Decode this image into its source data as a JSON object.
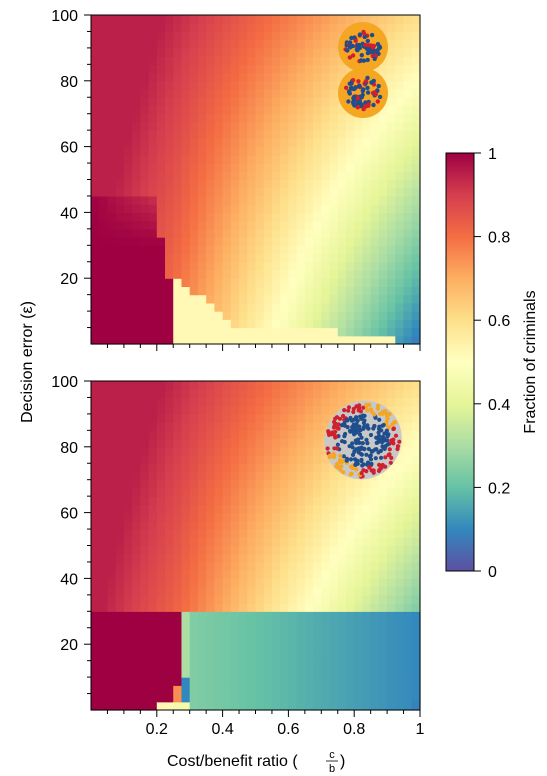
{
  "chart_data": [
    {
      "type": "heatmap",
      "panel": "top",
      "xlabel": "",
      "ylabel": "",
      "xlim": [
        0,
        1
      ],
      "ylim": [
        0,
        100
      ],
      "xticks": [
        0.2,
        0.4,
        0.6,
        0.8,
        1
      ],
      "x_tick_labels_shown": false,
      "yticks": [
        20,
        40,
        60,
        80,
        100
      ],
      "ytick_labels": [
        "20",
        "40",
        "60",
        "80",
        "100"
      ],
      "value": "fraction of criminals",
      "value_range": [
        0,
        1
      ],
      "cells": {
        "x_step": 0.025,
        "y_step": 2.5,
        "description_of_regions": [
          {
            "region": "low cost/benefit (x < ~0.22), error below ~45",
            "value": 1.0
          },
          {
            "region": "wedge above boundary x = 0.3 + 0.0055*(20 - e), e < 20",
            "value": 0.5
          },
          {
            "region": "upper-left gradient",
            "value_range": [
              0.5,
              0.95
            ]
          },
          {
            "region": "right side gradient toward x = 1, error 0",
            "value_range": [
              0.05,
              0.45
            ]
          }
        ]
      },
      "inset_icon": "two-circle-clusters-icon"
    },
    {
      "type": "heatmap",
      "panel": "bottom",
      "xlabel": "Cost/benefit ratio (c/b)",
      "ylabel": "",
      "xlim": [
        0,
        1
      ],
      "ylim": [
        0,
        100
      ],
      "xticks": [
        0.2,
        0.4,
        0.6,
        0.8,
        1
      ],
      "xtick_labels": [
        "0.2",
        "0.4",
        "0.6",
        "0.8",
        "1"
      ],
      "yticks": [
        20,
        40,
        60,
        80,
        100
      ],
      "ytick_labels": [
        "20",
        "40",
        "60",
        "80",
        "100"
      ],
      "value": "fraction of criminals",
      "value_range": [
        0,
        1
      ],
      "cells": {
        "x_step": 0.025,
        "y_step": 2.5,
        "description_of_regions": [
          {
            "region": "x < ~0.28, error below ~30",
            "value": 1.0
          },
          {
            "region": "narrow vertical band near x = 0.28",
            "value_range": [
              0.3,
              0.5
            ]
          },
          {
            "region": "upper-left gradient",
            "value_range": [
              0.5,
              0.95
            ]
          },
          {
            "region": "right side gradient",
            "value_range": [
              0.05,
              0.4
            ]
          }
        ]
      },
      "inset_icon": "ellipse-cluster-icon"
    }
  ],
  "shared": {
    "ylabel": "Decision error (ε)",
    "xlabel_prefix": "Cost/benefit ratio (",
    "xlabel_frac_num": "c",
    "xlabel_frac_den": "b",
    "xlabel_suffix": ")"
  },
  "colorbar": {
    "label": "Fraction of criminals",
    "ticks": [
      "0",
      "0.2",
      "0.4",
      "0.6",
      "0.8",
      "1"
    ],
    "range": [
      0,
      1
    ],
    "colormap": "Spectral_r",
    "stops": [
      "#5e4fa2",
      "#3288bd",
      "#66c2a5",
      "#abdda4",
      "#e6f598",
      "#ffffbf",
      "#fee08b",
      "#fdae61",
      "#f46d43",
      "#d53e4f",
      "#9e0142"
    ]
  },
  "inset_colors": {
    "orange": "#f5a623",
    "red": "#d0202e",
    "blue": "#1f4e8c",
    "gray": "#c8c8c8"
  }
}
